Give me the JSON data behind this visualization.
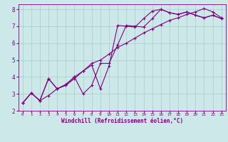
{
  "xlabel": "Windchill (Refroidissement éolien,°C)",
  "bg_color": "#cce8e8",
  "line_color": "#800080",
  "grid_color": "#aacccc",
  "xlim": [
    -0.5,
    23.5
  ],
  "ylim": [
    2,
    8.3
  ],
  "xticks": [
    0,
    1,
    2,
    3,
    4,
    5,
    6,
    7,
    8,
    9,
    10,
    11,
    12,
    13,
    14,
    15,
    16,
    17,
    18,
    19,
    20,
    21,
    22,
    23
  ],
  "yticks": [
    2,
    3,
    4,
    5,
    6,
    7,
    8
  ],
  "line1_x": [
    0,
    1,
    2,
    3,
    4,
    5,
    6,
    7,
    8,
    9,
    10,
    11,
    12,
    13,
    14,
    15,
    16,
    17,
    18,
    19,
    20,
    21,
    22,
    23
  ],
  "line1_y": [
    2.45,
    3.05,
    2.6,
    2.9,
    3.3,
    3.5,
    3.9,
    4.35,
    4.8,
    5.0,
    5.35,
    5.75,
    6.0,
    6.3,
    6.6,
    6.85,
    7.1,
    7.35,
    7.5,
    7.7,
    7.85,
    8.05,
    7.85,
    7.5
  ],
  "line2_x": [
    0,
    1,
    2,
    3,
    4,
    5,
    6,
    7,
    8,
    9,
    10,
    11,
    12,
    13,
    14,
    15,
    16,
    17,
    18,
    19,
    20,
    21,
    22,
    23
  ],
  "line2_y": [
    2.45,
    3.05,
    2.6,
    3.9,
    3.3,
    3.55,
    4.0,
    4.35,
    4.7,
    3.3,
    4.65,
    7.05,
    7.0,
    6.95,
    7.45,
    7.9,
    8.0,
    7.8,
    7.7,
    7.85,
    7.65,
    7.5,
    7.65,
    7.45
  ],
  "line3_x": [
    0,
    1,
    2,
    3,
    4,
    5,
    6,
    7,
    8,
    9,
    10,
    11,
    12,
    13,
    14,
    15,
    16,
    17,
    18,
    19,
    20,
    21,
    22,
    23
  ],
  "line3_y": [
    2.45,
    3.05,
    2.6,
    3.9,
    3.3,
    3.55,
    4.0,
    3.0,
    3.5,
    4.8,
    4.8,
    5.9,
    7.05,
    7.0,
    6.95,
    7.45,
    8.0,
    7.8,
    7.7,
    7.85,
    7.65,
    7.5,
    7.65,
    7.45
  ],
  "xlabel_fontsize": 5.5,
  "ylabel_fontsize": 5.5,
  "tick_fontsize_x": 4.2,
  "tick_fontsize_y": 5.5,
  "linewidth": 0.8,
  "markersize": 2.5
}
